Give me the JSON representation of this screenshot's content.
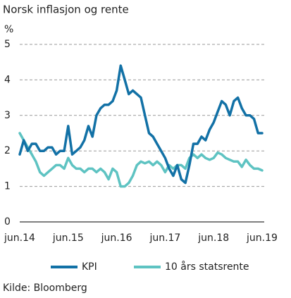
{
  "chart_data": {
    "type": "line",
    "title": "Norsk inflasjon og rente",
    "y_label": "%",
    "source": "Kilde: Bloomberg",
    "x": [
      "jun.14",
      null,
      null,
      null,
      null,
      null,
      null,
      null,
      null,
      null,
      null,
      null,
      "jun.15",
      null,
      null,
      null,
      null,
      null,
      null,
      null,
      null,
      null,
      null,
      null,
      "jun.16",
      null,
      null,
      null,
      null,
      null,
      null,
      null,
      null,
      null,
      null,
      null,
      "jun.17",
      null,
      null,
      null,
      null,
      null,
      null,
      null,
      null,
      null,
      null,
      null,
      "jun.18",
      null,
      null,
      null,
      null,
      null,
      null,
      null,
      null,
      null,
      null,
      null,
      "jun.19"
    ],
    "series": [
      {
        "name": "KPI",
        "color": "#1271a6",
        "values": [
          1.9,
          2.3,
          2.0,
          2.2,
          2.2,
          2.0,
          2.0,
          2.1,
          2.1,
          1.9,
          2.0,
          2.0,
          2.7,
          1.9,
          2.0,
          2.1,
          2.3,
          2.7,
          2.4,
          3.0,
          3.2,
          3.3,
          3.3,
          3.4,
          3.7,
          4.4,
          4.0,
          3.6,
          3.7,
          3.6,
          3.5,
          3.0,
          2.5,
          2.4,
          2.2,
          2.0,
          1.8,
          1.5,
          1.3,
          1.6,
          1.2,
          1.1,
          1.6,
          2.2,
          2.2,
          2.4,
          2.3,
          2.6,
          2.8,
          3.1,
          3.4,
          3.3,
          3.0,
          3.4,
          3.5,
          3.2,
          3.0,
          3.0,
          2.9,
          2.5,
          2.5
        ]
      },
      {
        "name": "10 års statsrente",
        "color": "#5ec3c2",
        "values": [
          2.5,
          2.3,
          2.1,
          1.9,
          1.7,
          1.4,
          1.3,
          1.4,
          1.5,
          1.6,
          1.6,
          1.5,
          1.8,
          1.6,
          1.5,
          1.5,
          1.4,
          1.5,
          1.5,
          1.4,
          1.5,
          1.4,
          1.2,
          1.5,
          1.4,
          1.0,
          1.0,
          1.1,
          1.3,
          1.6,
          1.7,
          1.65,
          1.7,
          1.6,
          1.7,
          1.6,
          1.4,
          1.6,
          1.5,
          1.6,
          1.6,
          1.5,
          1.8,
          1.9,
          1.8,
          1.9,
          1.8,
          1.75,
          1.8,
          1.95,
          1.9,
          1.8,
          1.75,
          1.7,
          1.7,
          1.55,
          1.75,
          1.6,
          1.5,
          1.5,
          1.45
        ]
      }
    ],
    "ylim": [
      0,
      5
    ],
    "yticks": [
      0,
      1,
      2,
      3,
      4,
      5
    ],
    "grid": true
  }
}
